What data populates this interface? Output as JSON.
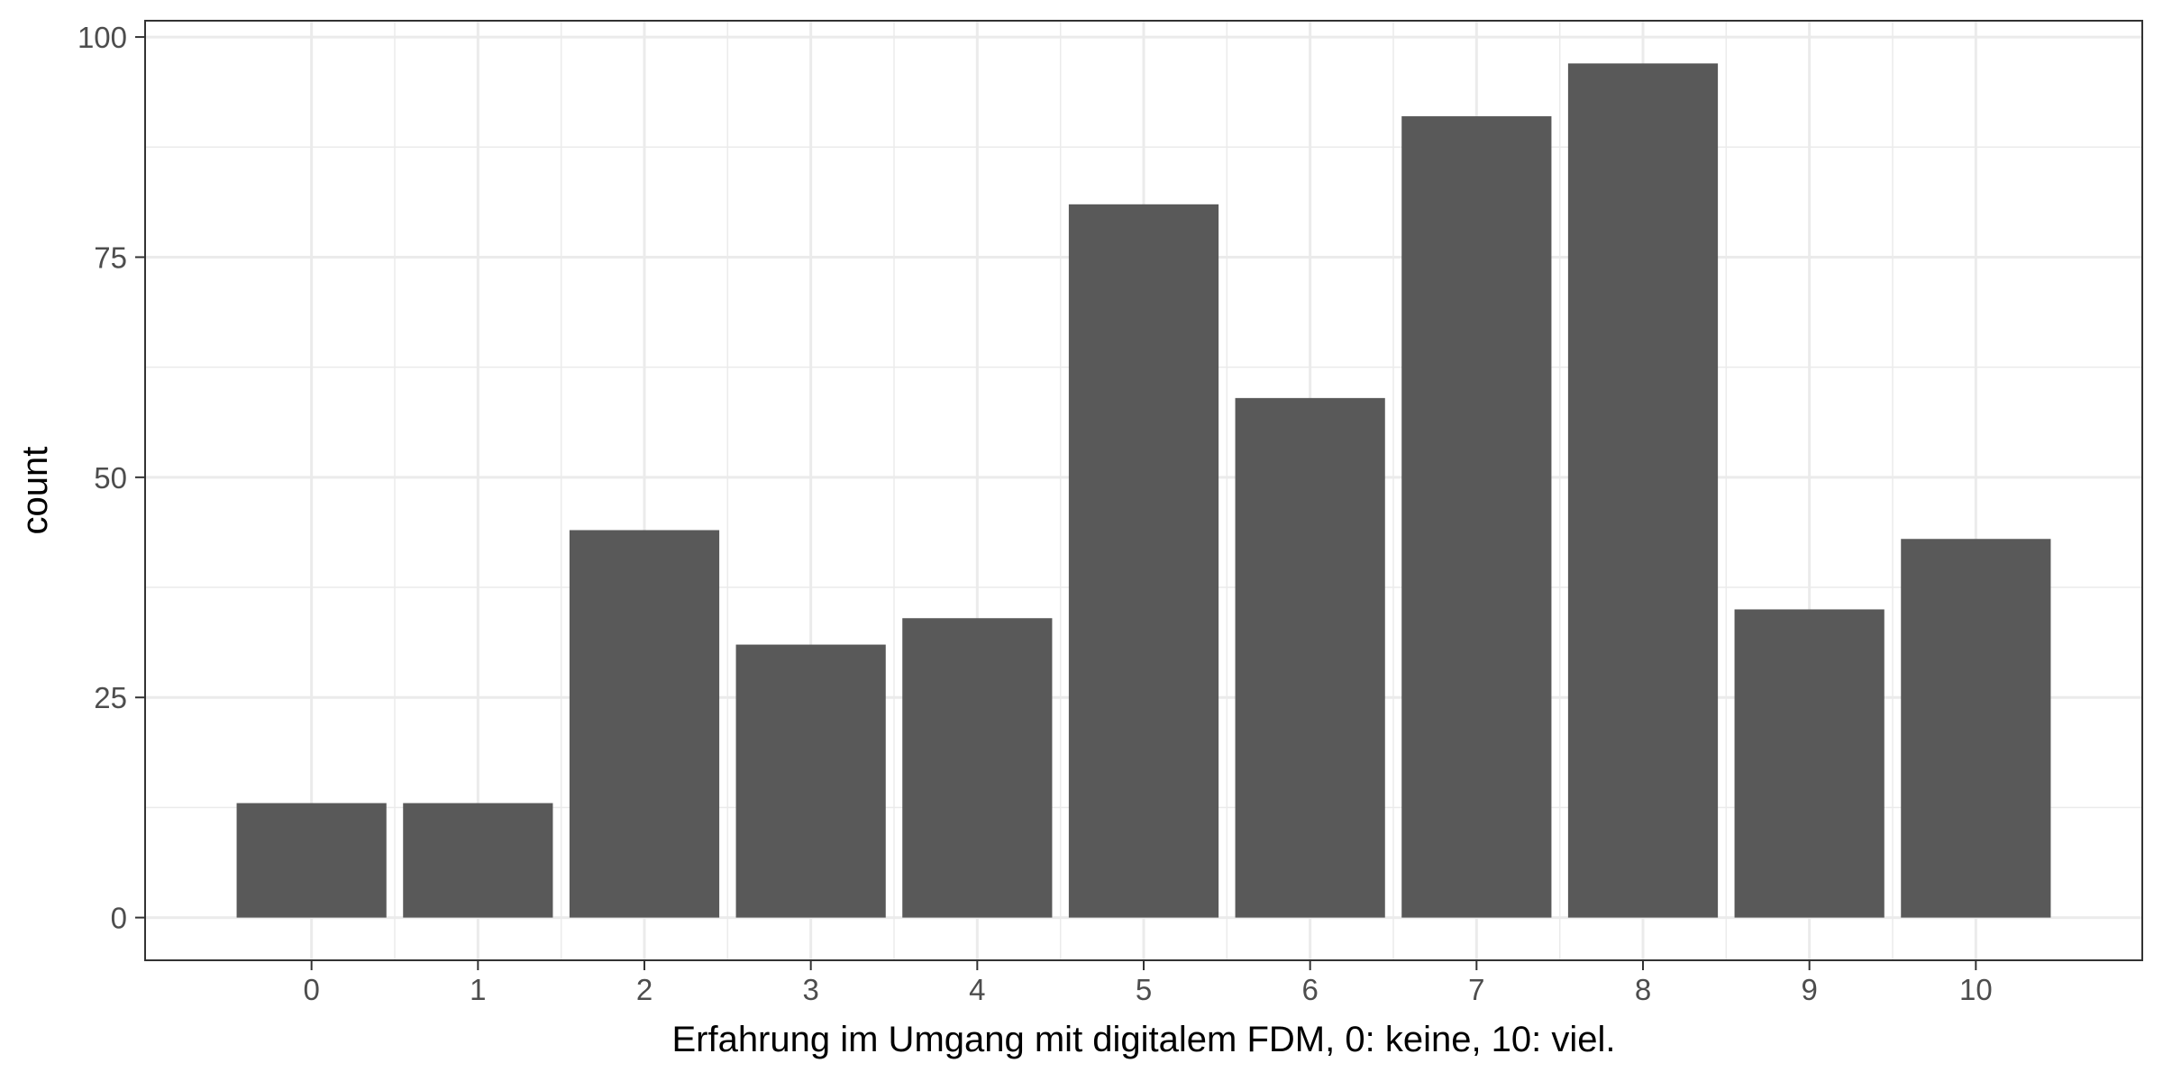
{
  "chart_data": {
    "type": "bar",
    "title": "",
    "xlabel": "Erfahrung im Umgang mit digitalem FDM, 0: keine, 10: viel.",
    "ylabel": "count",
    "categories": [
      "0",
      "1",
      "2",
      "3",
      "4",
      "5",
      "6",
      "7",
      "8",
      "9",
      "10"
    ],
    "values": [
      13,
      13,
      44,
      31,
      34,
      81,
      59,
      91,
      97,
      35,
      43
    ],
    "ylim": [
      0,
      100
    ],
    "yticks": [
      0,
      25,
      50,
      75,
      100
    ],
    "grid": true,
    "bar_color": "#595959",
    "grid_color": "#ebebeb",
    "panel_border_color": "#333333"
  }
}
